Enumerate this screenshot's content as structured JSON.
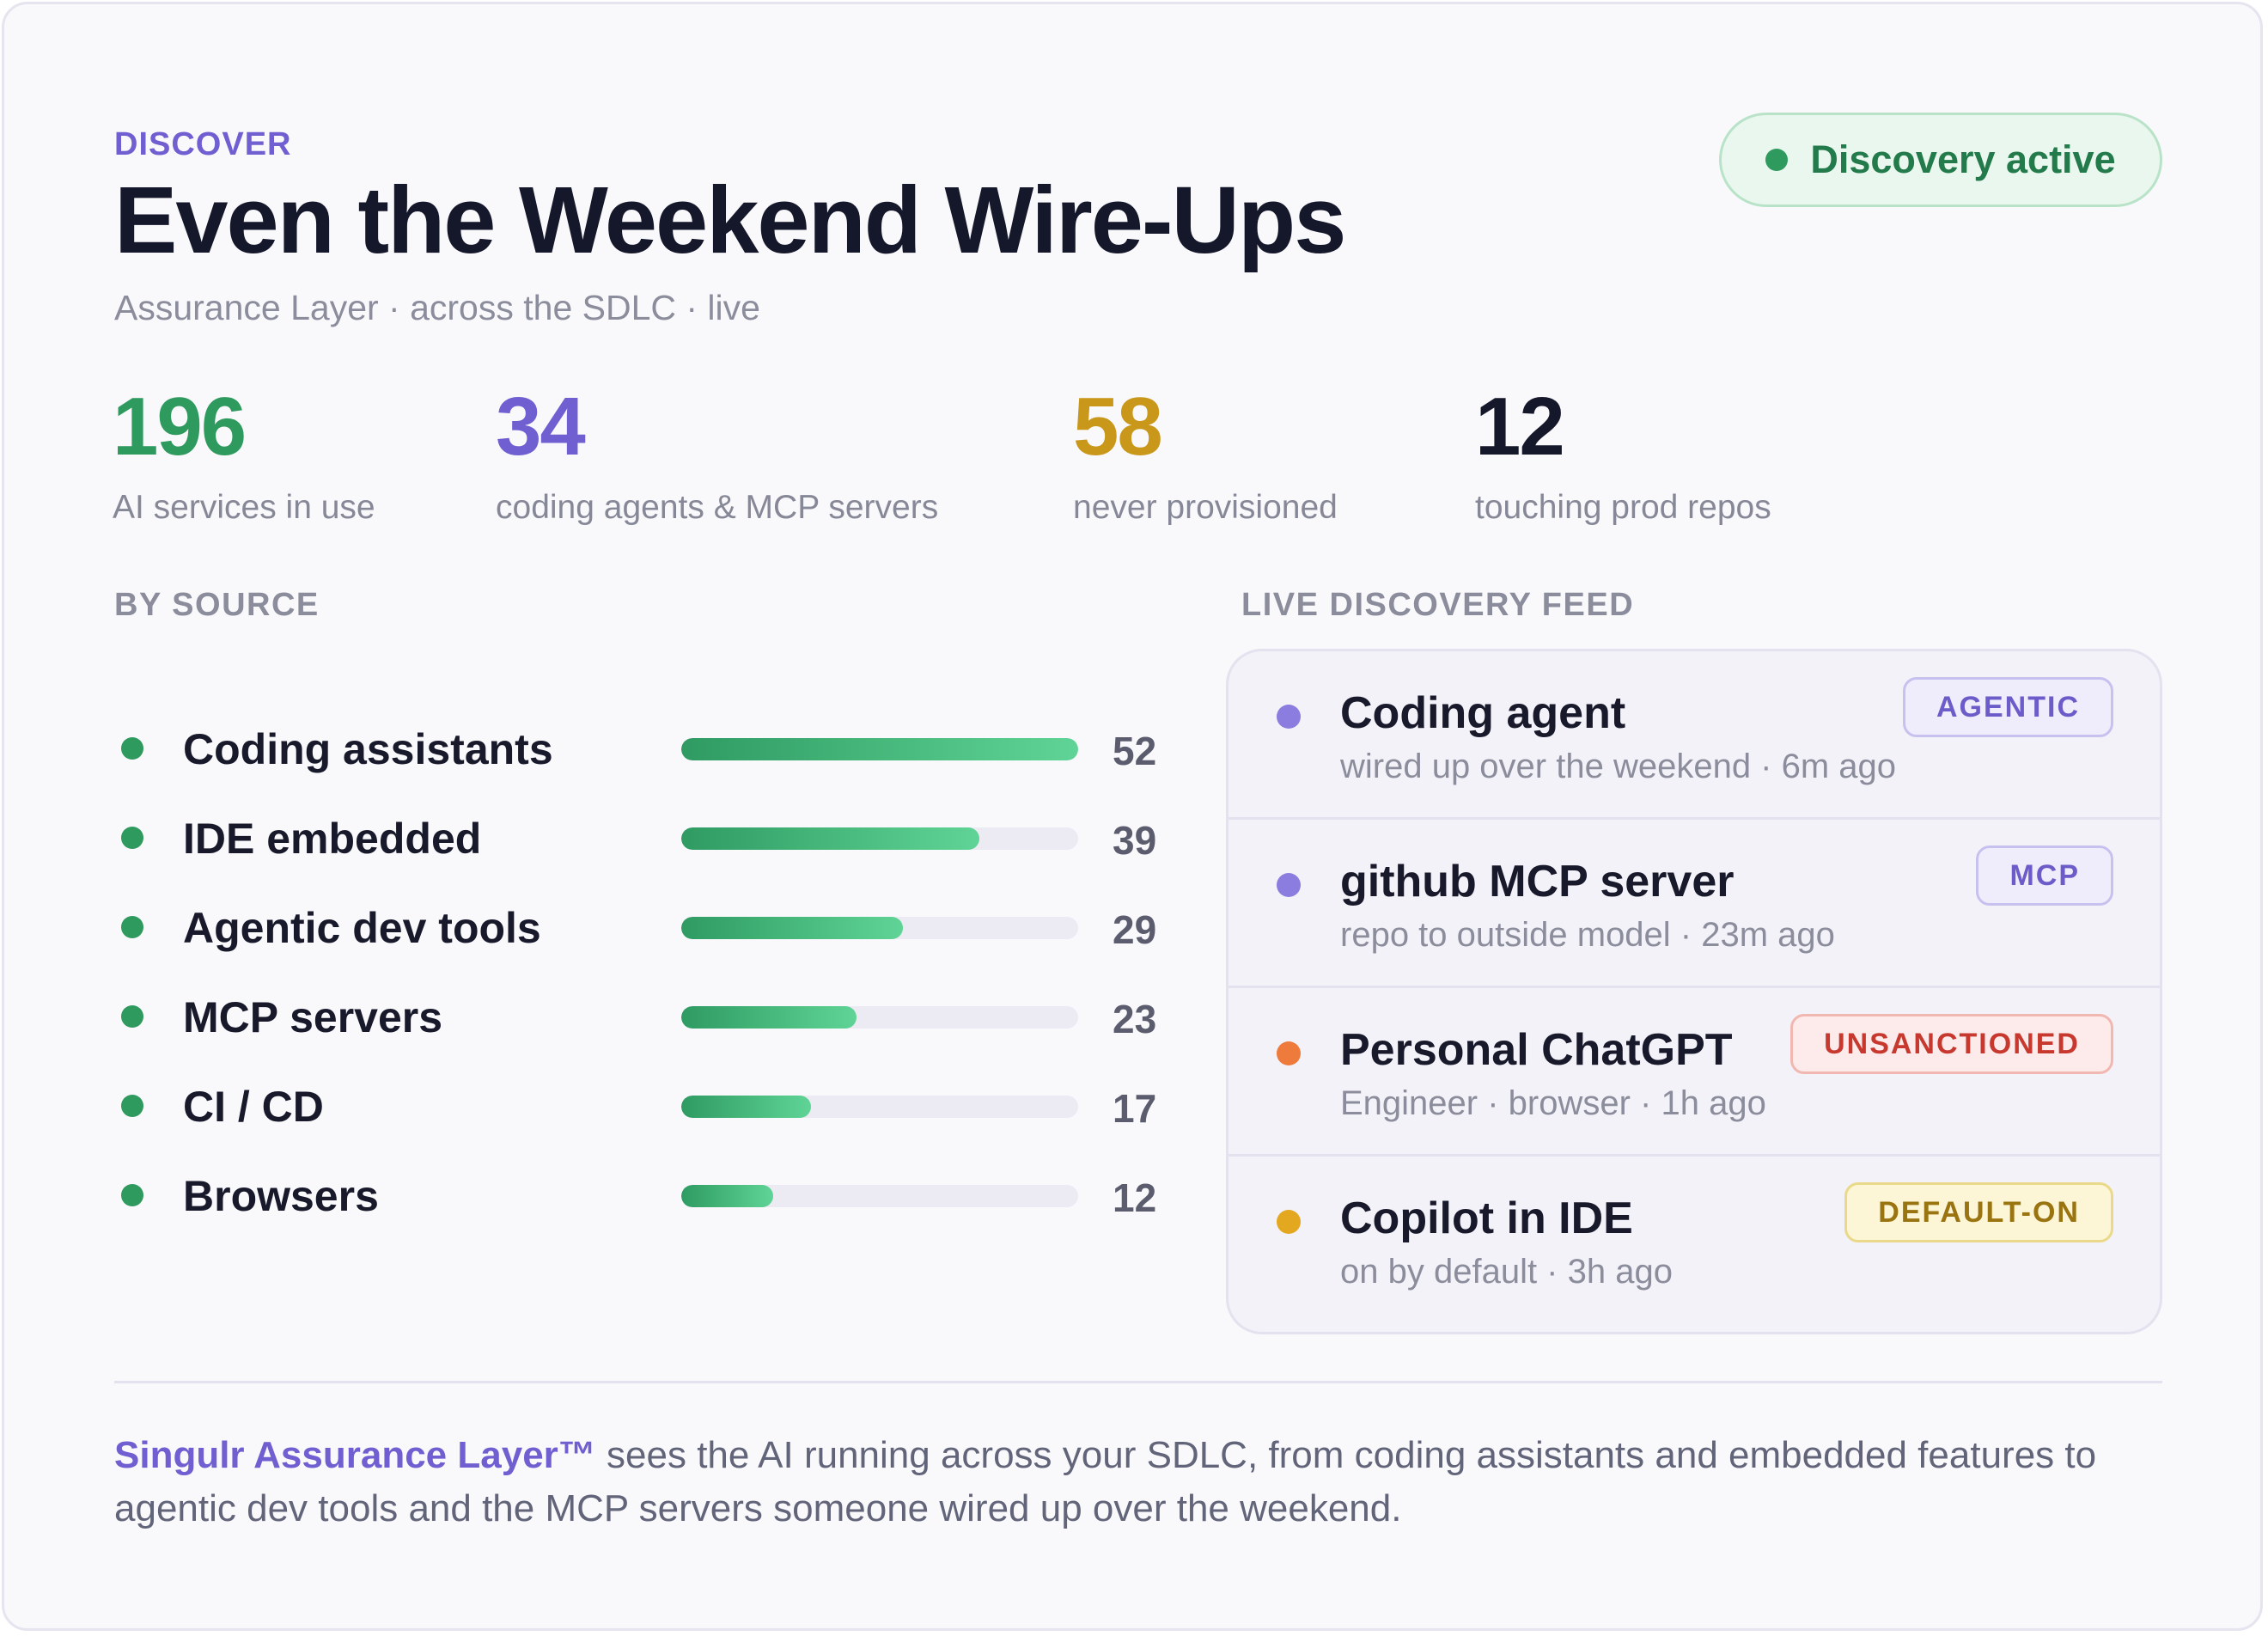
{
  "header": {
    "eyebrow": "DISCOVER",
    "title": "Even the Weekend Wire-Ups",
    "subtitle": "Assurance Layer · across the SDLC · live",
    "status_label": "Discovery active"
  },
  "stats": [
    {
      "value": "196",
      "label": "AI services in use",
      "color": "#2e9a5e"
    },
    {
      "value": "34",
      "label": "coding agents & MCP servers",
      "color": "#6f5fd1"
    },
    {
      "value": "58",
      "label": "never provisioned",
      "color": "#c9971a"
    },
    {
      "value": "12",
      "label": "touching prod repos",
      "color": "#15172b"
    }
  ],
  "by_source": {
    "label": "BY SOURCE",
    "max": 52,
    "items": [
      {
        "label": "Coding assistants",
        "count": 52
      },
      {
        "label": "IDE embedded",
        "count": 39
      },
      {
        "label": "Agentic dev tools",
        "count": 29
      },
      {
        "label": "MCP servers",
        "count": 23
      },
      {
        "label": "CI / CD",
        "count": 17
      },
      {
        "label": "Browsers",
        "count": 12
      }
    ]
  },
  "feed": {
    "label": "LIVE DISCOVERY FEED",
    "items": [
      {
        "title": "Coding agent",
        "subtitle": "wired up over the weekend · 6m ago",
        "badge": "AGENTIC",
        "dot_color": "#8b7ce0"
      },
      {
        "title": "github MCP server",
        "subtitle": "repo to outside model · 23m ago",
        "badge": "MCP",
        "dot_color": "#8b7ce0"
      },
      {
        "title": "Personal ChatGPT",
        "subtitle": "Engineer · browser · 1h ago",
        "badge": "UNSANCTIONED",
        "dot_color": "#ee7a3c"
      },
      {
        "title": "Copilot in IDE",
        "subtitle": "on by default · 3h ago",
        "badge": "DEFAULT-ON",
        "dot_color": "#e3a720"
      }
    ]
  },
  "footer": {
    "brand": "Singulr Assurance Layer™",
    "text": " sees the AI running across your SDLC, from coding assistants and embedded features to agentic dev tools and the MCP servers someone wired up over the weekend."
  }
}
